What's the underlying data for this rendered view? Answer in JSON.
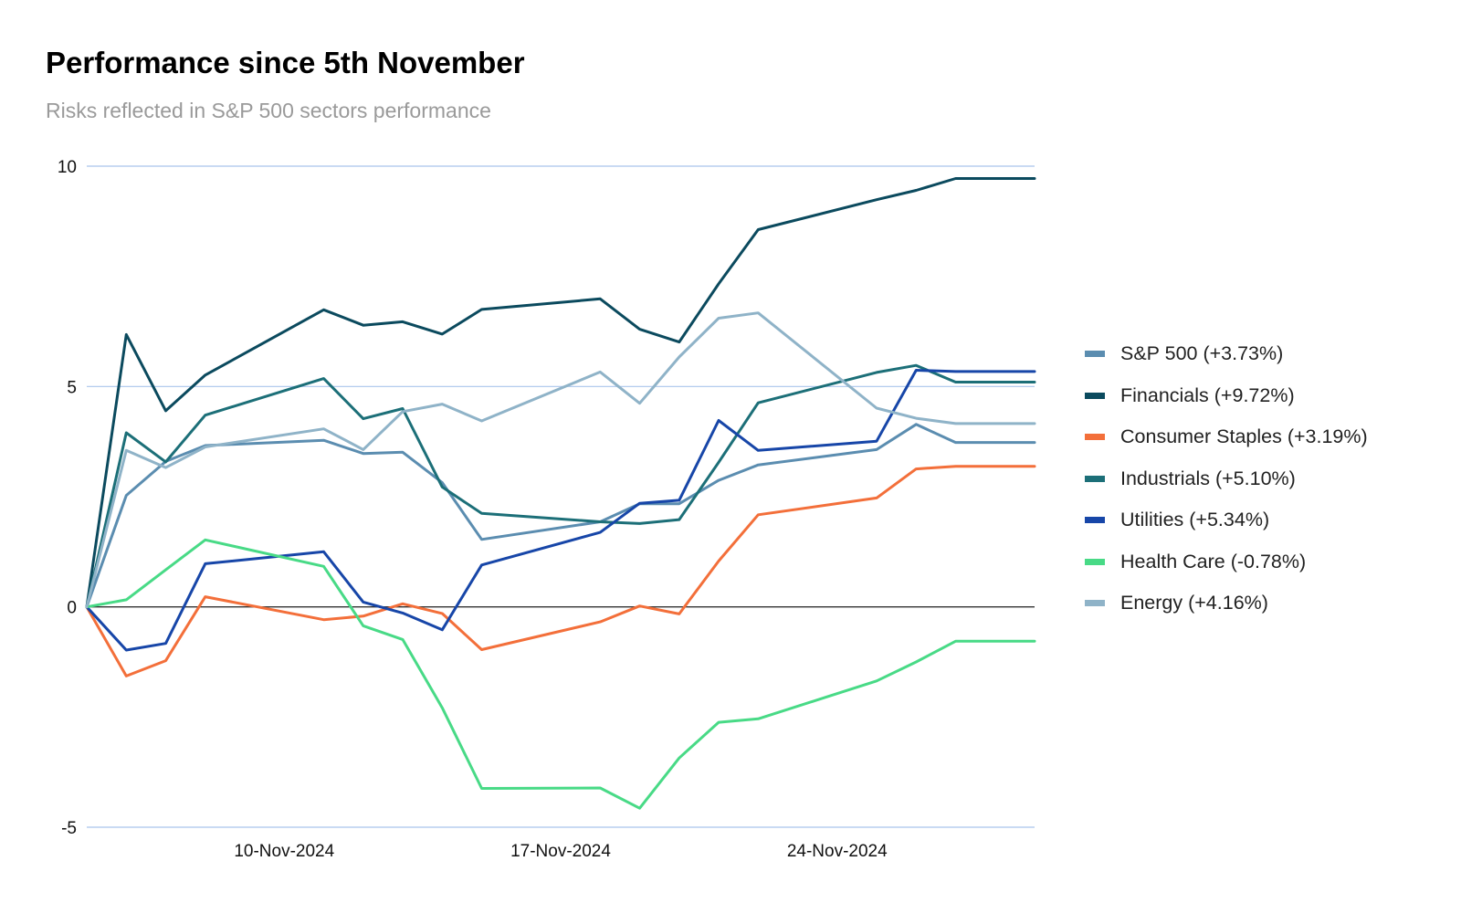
{
  "chart_data": {
    "type": "line",
    "title": "Performance since 5th November",
    "subtitle": "Risks reflected in S&P 500 sectors performance",
    "xlabel": "",
    "ylabel": "",
    "ylim": [
      -5,
      10
    ],
    "y_ticks": [
      "10",
      "5",
      "0",
      "-5"
    ],
    "grid": "horizontal",
    "legend_position": "right",
    "x": [
      "2024-11-05",
      "2024-11-06",
      "2024-11-07",
      "2024-11-08",
      "2024-11-11",
      "2024-11-12",
      "2024-11-13",
      "2024-11-14",
      "2024-11-15",
      "2024-11-18",
      "2024-11-19",
      "2024-11-20",
      "2024-11-21",
      "2024-11-22",
      "2024-11-25",
      "2024-11-26",
      "2024-11-27",
      "2024-11-29"
    ],
    "x_ticks": [
      {
        "date": "2024-11-10",
        "label": "10-Nov-2024"
      },
      {
        "date": "2024-11-17",
        "label": "17-Nov-2024"
      },
      {
        "date": "2024-11-24",
        "label": "24-Nov-2024"
      }
    ],
    "series": [
      {
        "name": "S&P 500 (+3.73%)",
        "color": "#5b8db0",
        "values": [
          0,
          2.53,
          3.3,
          3.66,
          3.78,
          3.48,
          3.51,
          2.82,
          1.53,
          1.93,
          2.34,
          2.34,
          2.87,
          3.22,
          3.57,
          4.14,
          3.73,
          3.73
        ]
      },
      {
        "name": "Financials (+9.72%)",
        "color": "#0b4a5e",
        "values": [
          0,
          6.18,
          4.45,
          5.26,
          6.74,
          6.39,
          6.47,
          6.19,
          6.75,
          6.99,
          6.3,
          6.01,
          7.33,
          8.56,
          9.24,
          9.45,
          9.72,
          9.72
        ]
      },
      {
        "name": "Consumer Staples (+3.19%)",
        "color": "#f36f3a",
        "values": [
          0,
          -1.57,
          -1.22,
          0.23,
          -0.29,
          -0.21,
          0.07,
          -0.15,
          -0.97,
          -0.34,
          0.02,
          -0.16,
          1.04,
          2.09,
          2.47,
          3.13,
          3.19,
          3.19
        ]
      },
      {
        "name": "Industrials (+5.10%)",
        "color": "#1c6f78",
        "values": [
          0,
          3.95,
          3.29,
          4.35,
          5.18,
          4.27,
          4.5,
          2.72,
          2.12,
          1.93,
          1.89,
          1.98,
          3.28,
          4.63,
          5.32,
          5.48,
          5.1,
          5.1
        ]
      },
      {
        "name": "Utilities (+5.34%)",
        "color": "#1746a8",
        "values": [
          0,
          -0.98,
          -0.83,
          0.98,
          1.25,
          0.11,
          -0.14,
          -0.52,
          0.95,
          1.69,
          2.35,
          2.42,
          4.23,
          3.55,
          3.76,
          5.37,
          5.34,
          5.34
        ]
      },
      {
        "name": "Health Care (-0.78%)",
        "color": "#48da86",
        "values": [
          0,
          0.16,
          0.84,
          1.52,
          0.92,
          -0.43,
          -0.74,
          -2.29,
          -4.12,
          -4.11,
          -4.57,
          -3.43,
          -2.62,
          -2.54,
          -1.68,
          -1.25,
          -0.78,
          -0.78
        ]
      },
      {
        "name": "Energy (+4.16%)",
        "color": "#8fb3c8",
        "values": [
          0,
          3.55,
          3.16,
          3.63,
          4.04,
          3.57,
          4.43,
          4.6,
          4.22,
          5.33,
          4.62,
          5.67,
          6.55,
          6.67,
          4.51,
          4.28,
          4.16,
          4.16
        ]
      }
    ]
  }
}
